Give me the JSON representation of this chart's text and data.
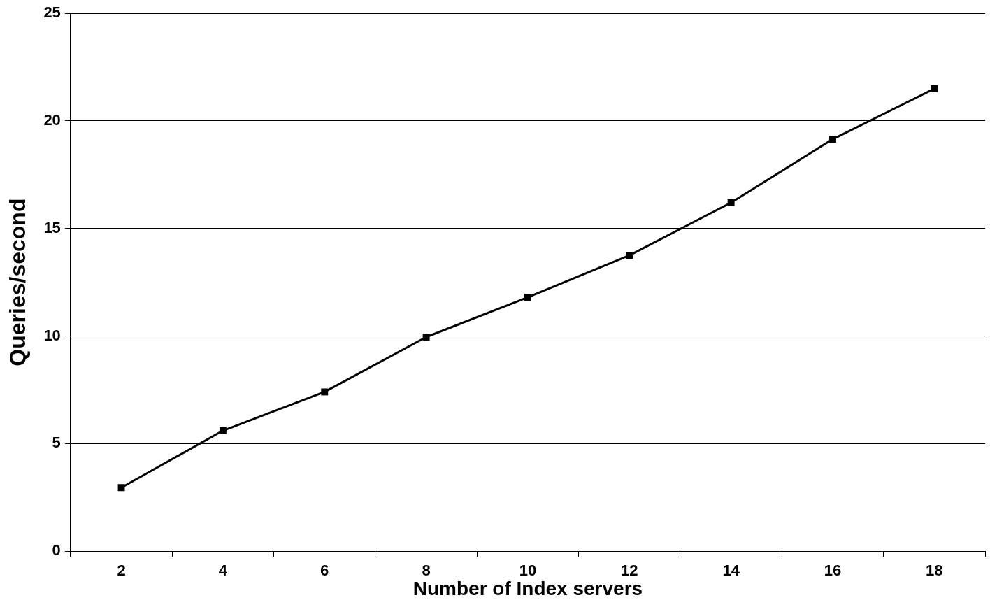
{
  "chart_data": {
    "type": "line",
    "xlabel": "Number of Index servers",
    "ylabel": "Queries/second",
    "categories": [
      "2",
      "4",
      "6",
      "8",
      "10",
      "12",
      "14",
      "16",
      "18"
    ],
    "series": [
      {
        "color": "#000000",
        "values": [
          2.95,
          5.6,
          7.4,
          9.95,
          11.8,
          13.75,
          16.2,
          19.15,
          21.5
        ]
      }
    ],
    "ylim": [
      0,
      25
    ],
    "yticks": [
      0,
      5,
      10,
      15,
      20,
      25
    ],
    "grid": "y",
    "legend": false,
    "marker": "square",
    "line_style": "solid"
  }
}
